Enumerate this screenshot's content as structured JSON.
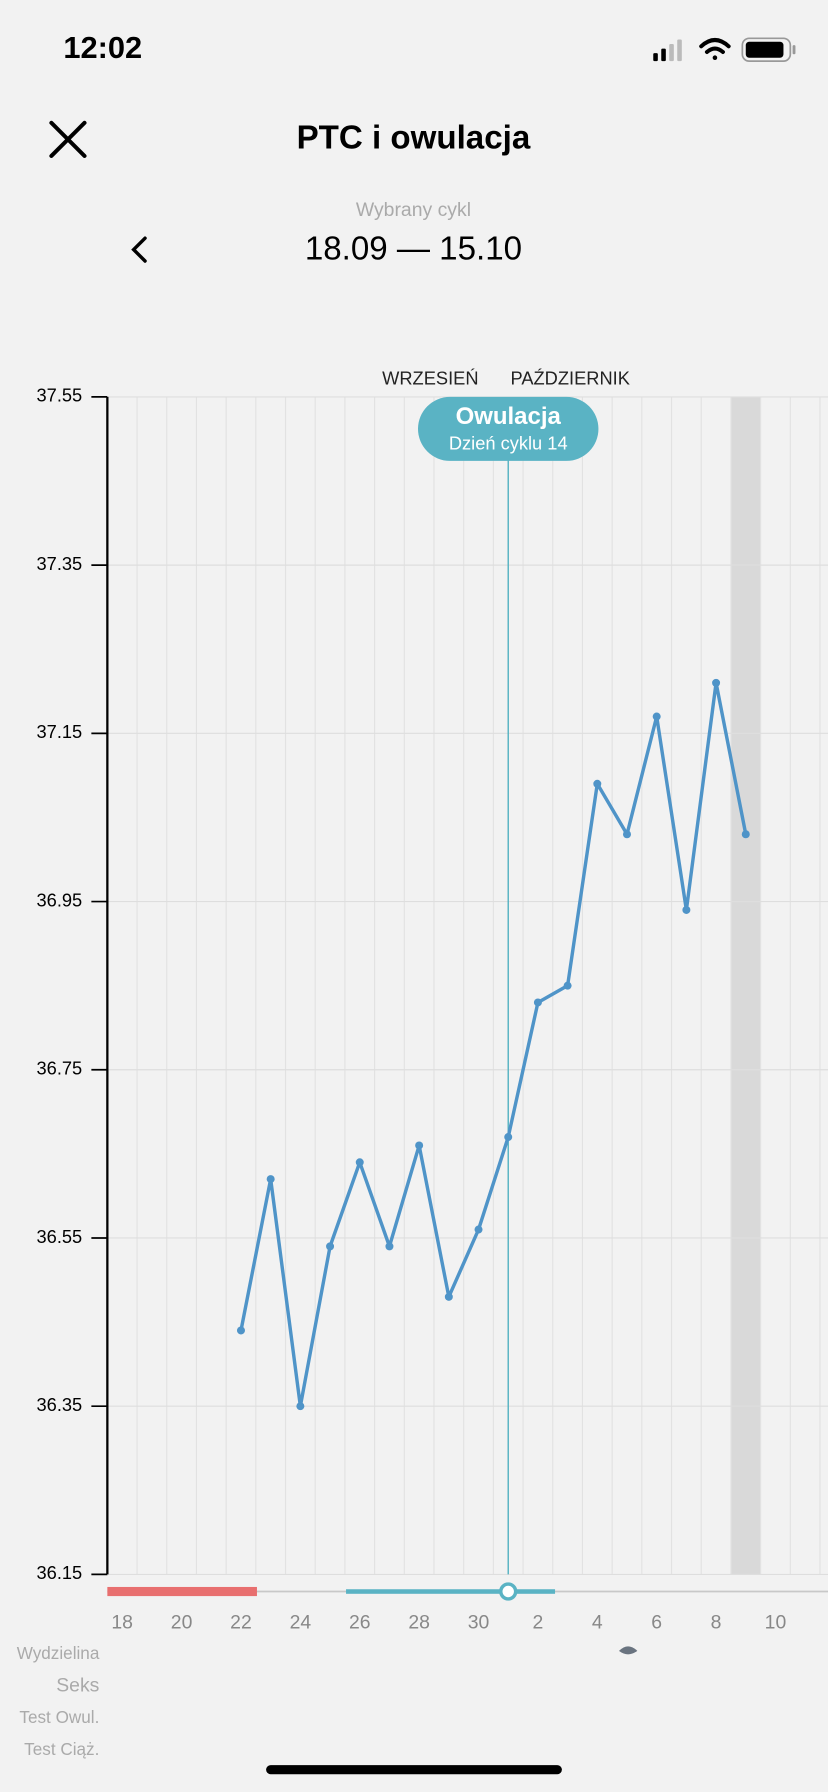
{
  "status_bar": {
    "time": "12:02"
  },
  "header": {
    "title": "PTC i owulacja",
    "cycle_caption": "Wybrany cykl",
    "cycle_range": "18.09 — 15.10"
  },
  "chart_data": {
    "type": "line",
    "months": [
      "WRZESIEŃ",
      "PAŹDZIERNIK"
    ],
    "categories": [
      "18",
      null,
      "20",
      null,
      "22",
      null,
      "24",
      null,
      "26",
      null,
      "28",
      null,
      "30",
      null,
      "2",
      null,
      "4",
      null,
      "6",
      null,
      "8",
      null,
      "10",
      null
    ],
    "series": [
      {
        "name": "PTC",
        "color": "#4f94c8",
        "values": [
          null,
          null,
          null,
          null,
          36.44,
          36.62,
          36.35,
          36.54,
          36.64,
          36.54,
          36.66,
          36.48,
          36.56,
          36.67,
          36.83,
          36.85,
          37.09,
          37.03,
          37.17,
          36.94,
          37.21,
          37.03,
          null,
          null
        ]
      }
    ],
    "ylim": [
      36.15,
      37.55
    ],
    "yticks": [
      36.15,
      36.35,
      36.55,
      36.75,
      36.95,
      37.15,
      37.35,
      37.55
    ],
    "grid": true,
    "annotation": {
      "title": "Owulacja",
      "subtitle": "Dzień cyklu 14"
    },
    "rows": [
      "Wydzielina",
      "Seks",
      "Test Owul.",
      "Test Ciąż."
    ]
  }
}
